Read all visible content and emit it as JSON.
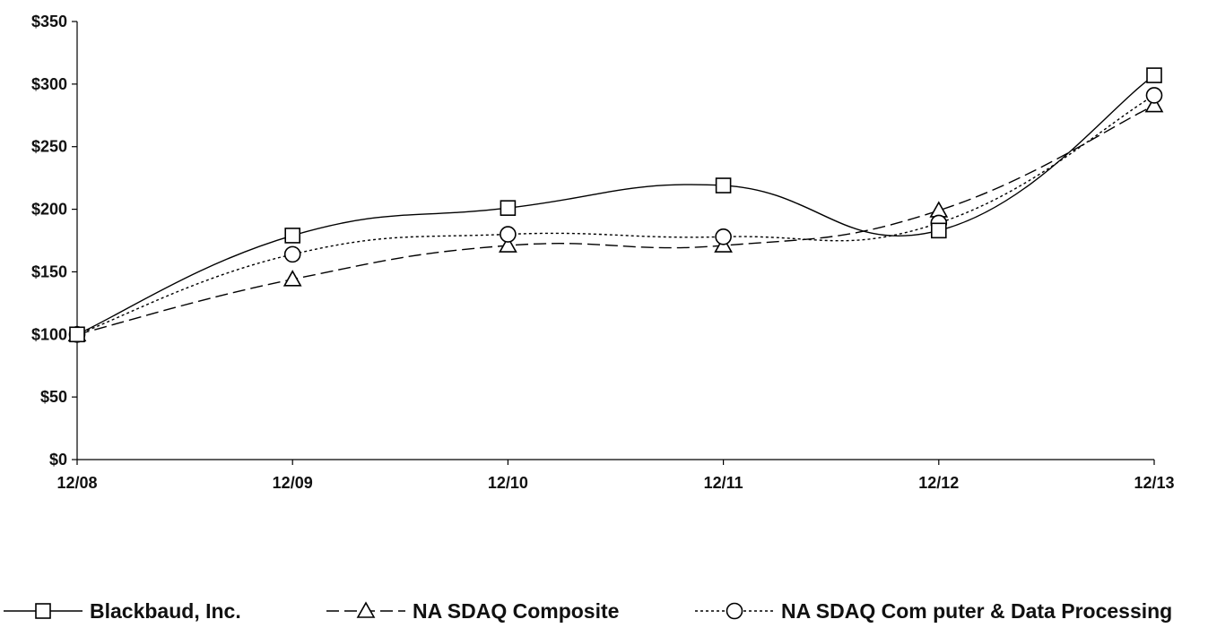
{
  "chart_data": {
    "type": "line",
    "title": "",
    "xlabel": "",
    "ylabel": "",
    "categories": [
      "12/08",
      "12/09",
      "12/10",
      "12/11",
      "12/12",
      "12/13"
    ],
    "y_tick_labels": [
      "$0",
      "$50",
      "$100",
      "$150",
      "$200",
      "$250",
      "$300",
      "$350"
    ],
    "ylim": [
      0,
      350
    ],
    "grid": false,
    "legend_position": "bottom",
    "series": [
      {
        "name": "Blackbaud, Inc.",
        "values": [
          100,
          179,
          201,
          219,
          183,
          307
        ],
        "marker": "square",
        "line_style": "solid",
        "color": "#000000"
      },
      {
        "name": "NA SDAQ Composite",
        "values": [
          100,
          144,
          171,
          171,
          199,
          283
        ],
        "marker": "triangle",
        "line_style": "dashed",
        "color": "#000000"
      },
      {
        "name": "NA SDAQ Com puter & Data Processing",
        "values": [
          100,
          164,
          180,
          178,
          189,
          291
        ],
        "marker": "circle",
        "line_style": "dotted",
        "color": "#000000"
      }
    ]
  }
}
